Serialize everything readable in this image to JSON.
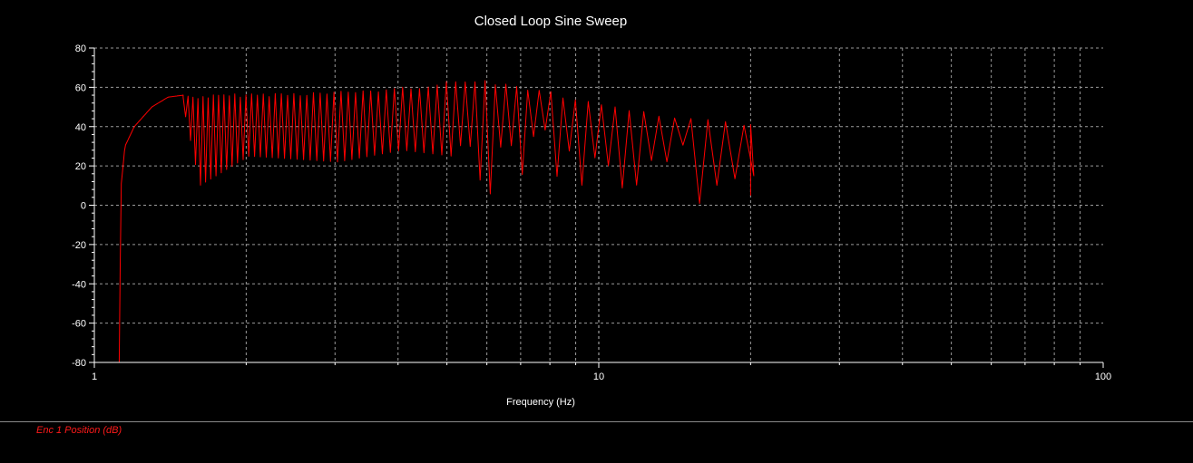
{
  "chart_data": {
    "type": "line",
    "title": "Closed Loop Sine Sweep",
    "xlabel": "Frequency (Hz)",
    "ylabel": "",
    "xscale": "log",
    "xlim": [
      1,
      100
    ],
    "ylim": [
      -80,
      80
    ],
    "x_ticks": [
      1,
      10,
      100
    ],
    "x_tick_labels": [
      "1",
      "10",
      "100"
    ],
    "y_ticks": [
      80,
      60,
      40,
      20,
      0,
      -20,
      -40,
      -60,
      -80
    ],
    "y_tick_labels": [
      "80",
      "60",
      "40",
      "20",
      "0",
      "-20",
      "-40",
      "-60",
      "-80"
    ],
    "grid": true,
    "legend_position": "bottom-left",
    "series": [
      {
        "name": "Enc 1 Position (dB)",
        "color": "#ff0000",
        "x": [
          1.12,
          1.13,
          1.15,
          1.2,
          1.3,
          1.4,
          1.5,
          1.6,
          2,
          3,
          4,
          5,
          5.8,
          6.5,
          8,
          9.5,
          10,
          12,
          15,
          20
        ],
        "upper": [
          -80,
          10,
          30,
          40,
          50,
          55,
          56,
          56,
          57,
          58,
          60,
          63,
          65,
          62,
          58,
          53,
          52,
          48,
          45,
          41
        ],
        "lower": [
          -80,
          10,
          30,
          40,
          50,
          55,
          45,
          10,
          25,
          22,
          28,
          25,
          15,
          18,
          15,
          12,
          15,
          15,
          10,
          5
        ]
      }
    ]
  }
}
